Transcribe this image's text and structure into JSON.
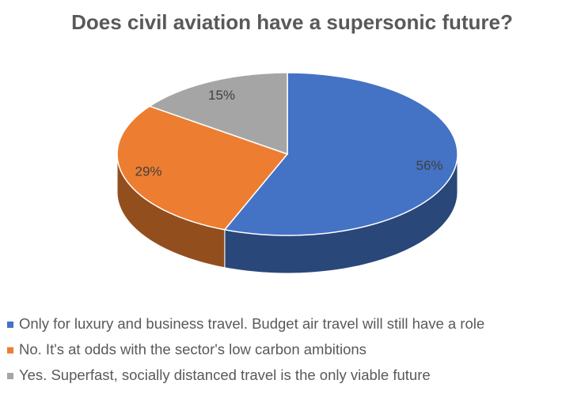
{
  "chart_data": {
    "type": "pie",
    "title": "Does civil aviation have a supersonic future?",
    "categories": [
      "Only for luxury and business travel. Budget air travel will still have a role",
      "No. It's at odds with the sector's low carbon ambitions",
      "Yes. Superfast, socially distanced travel is the only viable future"
    ],
    "values": [
      56,
      29,
      15
    ],
    "value_labels": [
      "56%",
      "29%",
      "15%"
    ],
    "colors": [
      "#4472c4",
      "#ed7d31",
      "#a5a5a5"
    ],
    "legend": "bottom",
    "three_d": true
  }
}
